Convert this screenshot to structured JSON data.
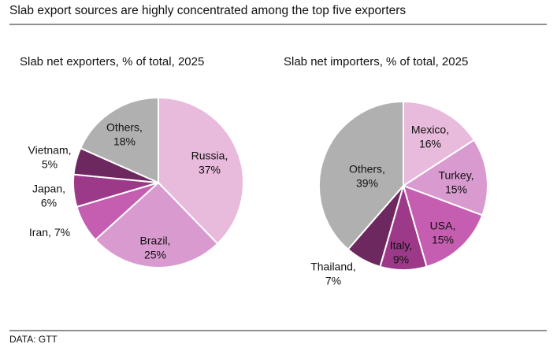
{
  "header": {
    "title": "Slab export sources are highly concentrated among the top five exporters"
  },
  "footer": {
    "source": "DATA: GTT"
  },
  "chart_data": [
    {
      "type": "pie",
      "title": "Slab net exporters, % of total, 2025",
      "categories": [
        "Russia,",
        "Brazil,",
        "Iran,",
        "Japan,",
        "Vietnam,",
        "Others,"
      ],
      "values": [
        37,
        25,
        7,
        6,
        5,
        18
      ],
      "value_labels": [
        "37%",
        "25%",
        "7%",
        "6%",
        "5%",
        "18%"
      ],
      "colors": [
        "#e8badc",
        "#d99bcf",
        "#c55eb1",
        "#9c3a89",
        "#6d295f",
        "#b0b0b0"
      ]
    },
    {
      "type": "pie",
      "title": "Slab net importers, % of total, 2025",
      "categories": [
        "Mexico,",
        "Turkey,",
        "USA,",
        "Italy,",
        "Thailand,",
        "Others,"
      ],
      "values": [
        16,
        15,
        15,
        9,
        7,
        39
      ],
      "value_labels": [
        "16%",
        "15%",
        "15%",
        "9%",
        "7%",
        "39%"
      ],
      "colors": [
        "#e8badc",
        "#d99bcf",
        "#c55eb1",
        "#9c3a89",
        "#6d295f",
        "#b0b0b0"
      ]
    }
  ]
}
